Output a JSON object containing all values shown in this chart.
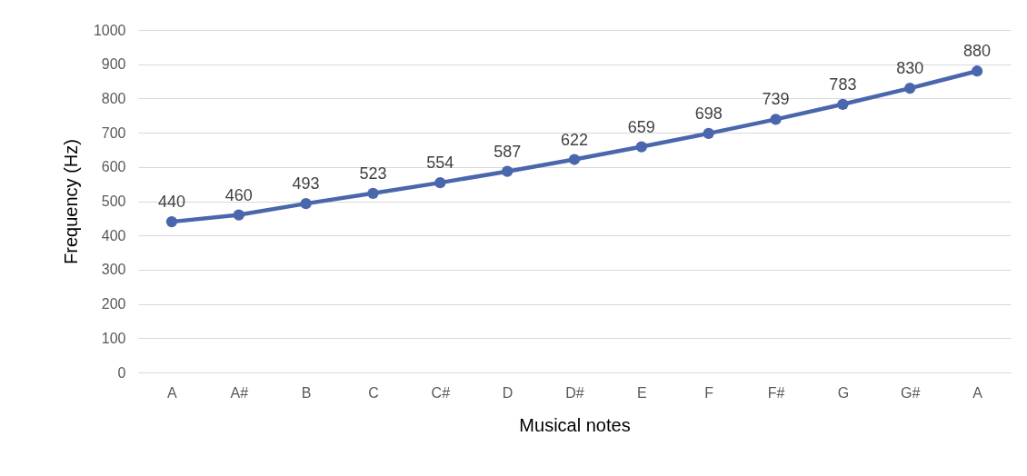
{
  "chart_data": {
    "type": "line",
    "xlabel": "Musical notes",
    "ylabel": "Frequency (Hz)",
    "categories": [
      "A",
      "A#",
      "B",
      "C",
      "C#",
      "D",
      "D#",
      "E",
      "F",
      "F#",
      "G",
      "G#",
      "A"
    ],
    "series": [
      {
        "color": "#4a66ac",
        "values": [
          440,
          460,
          493,
          523,
          554,
          587,
          622,
          659,
          698,
          739,
          783,
          830,
          880
        ]
      }
    ],
    "ylim": [
      0,
      1000
    ],
    "yticks": [
      0,
      100,
      200,
      300,
      400,
      500,
      600,
      700,
      800,
      900,
      1000
    ],
    "grid": "y",
    "marker": "circle",
    "data_labels": true,
    "legend": false
  }
}
